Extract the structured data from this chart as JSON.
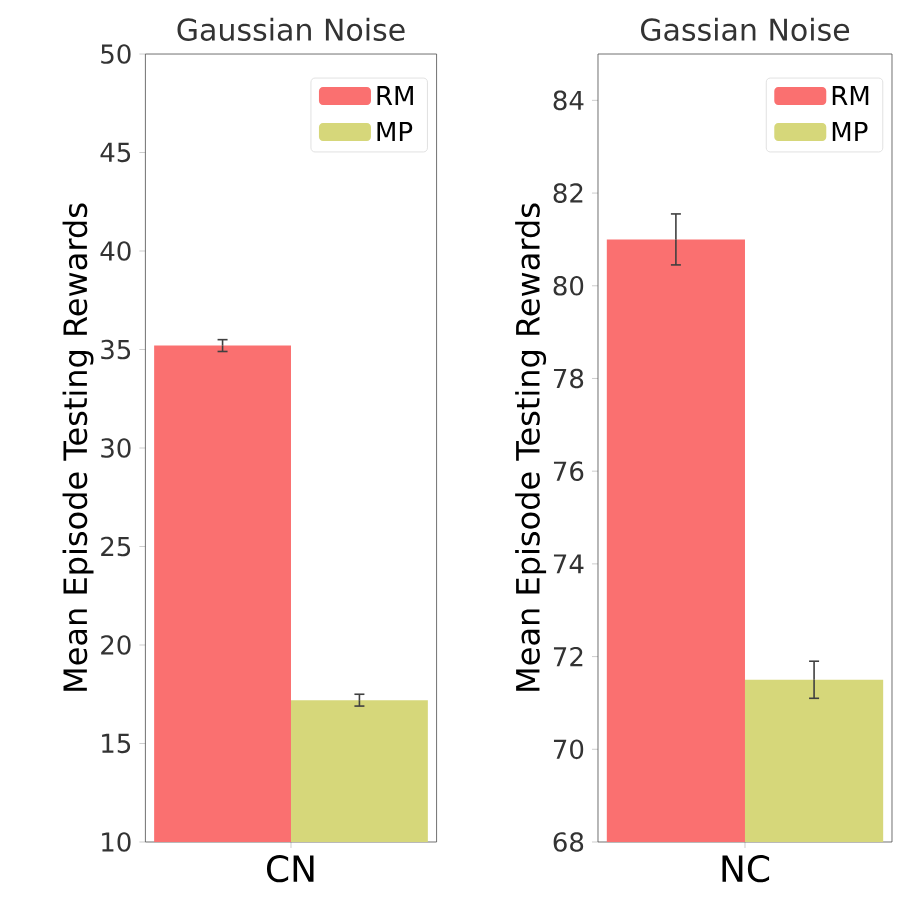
{
  "chart_data": [
    {
      "type": "bar",
      "title": "Gaussian Noise",
      "ylabel": "Mean Episode Testing Rewards",
      "categories": [
        "CN"
      ],
      "series": [
        {
          "name": "RM",
          "color": "#fa7070",
          "values": [
            35.2
          ],
          "errors": [
            0.3
          ]
        },
        {
          "name": "MP",
          "color": "#d6d77a",
          "values": [
            17.2
          ],
          "errors": [
            0.3
          ]
        }
      ],
      "ylim": [
        10,
        50
      ],
      "yticks": [
        10,
        15,
        20,
        25,
        30,
        35,
        40,
        45,
        50
      ],
      "legend": "top right"
    },
    {
      "type": "bar",
      "title": "Gassian Noise",
      "ylabel": "Mean Episode Testing Rewards",
      "categories": [
        "NC"
      ],
      "series": [
        {
          "name": "RM",
          "color": "#fa7070",
          "values": [
            81.0
          ],
          "errors": [
            0.55
          ]
        },
        {
          "name": "MP",
          "color": "#d6d77a",
          "values": [
            71.5
          ],
          "errors": [
            0.4
          ]
        }
      ],
      "ylim": [
        68,
        85
      ],
      "yticks": [
        68,
        70,
        72,
        74,
        76,
        78,
        80,
        82,
        84
      ],
      "legend": "top right"
    }
  ]
}
